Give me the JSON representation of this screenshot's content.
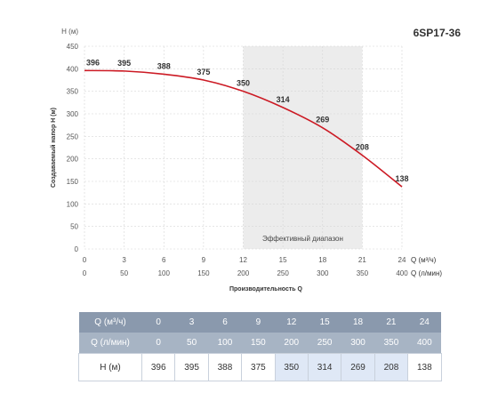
{
  "model": "6SP17-36",
  "chart_data": {
    "type": "line",
    "ylabel_top": "H (м)",
    "ylabel": "Создаваемый напор Н (м)",
    "xlabel": "Производительность Q",
    "x1_unit": "Q (м³/ч)",
    "x2_unit": "Q (л/мин)",
    "x": [
      0,
      3,
      6,
      9,
      12,
      15,
      18,
      21,
      24
    ],
    "x2": [
      0,
      50,
      100,
      150,
      200,
      250,
      300,
      350,
      400
    ],
    "y": [
      396,
      395,
      388,
      375,
      350,
      314,
      269,
      208,
      138
    ],
    "xlim": [
      0,
      24
    ],
    "ylim": [
      0,
      450
    ],
    "yticks": [
      0,
      50,
      100,
      150,
      200,
      250,
      300,
      350,
      400,
      450
    ],
    "effective_range": [
      12,
      21
    ],
    "effective_label": "Эффективный диапазон",
    "grid": true,
    "line_color": "#cc1a24",
    "band_color": "#ececec"
  },
  "table": {
    "q_label": "Q (м³/ч)",
    "q_values": [
      "0",
      "3",
      "6",
      "9",
      "12",
      "15",
      "18",
      "21",
      "24"
    ],
    "ql_label": "Q (л/мин)",
    "ql_values": [
      "0",
      "50",
      "100",
      "150",
      "200",
      "250",
      "300",
      "350",
      "400"
    ],
    "h_label": "H (м)",
    "h_values": [
      "396",
      "395",
      "388",
      "375",
      "350",
      "314",
      "269",
      "208",
      "138"
    ],
    "highlighted": [
      false,
      false,
      false,
      false,
      true,
      true,
      true,
      true,
      false
    ]
  }
}
